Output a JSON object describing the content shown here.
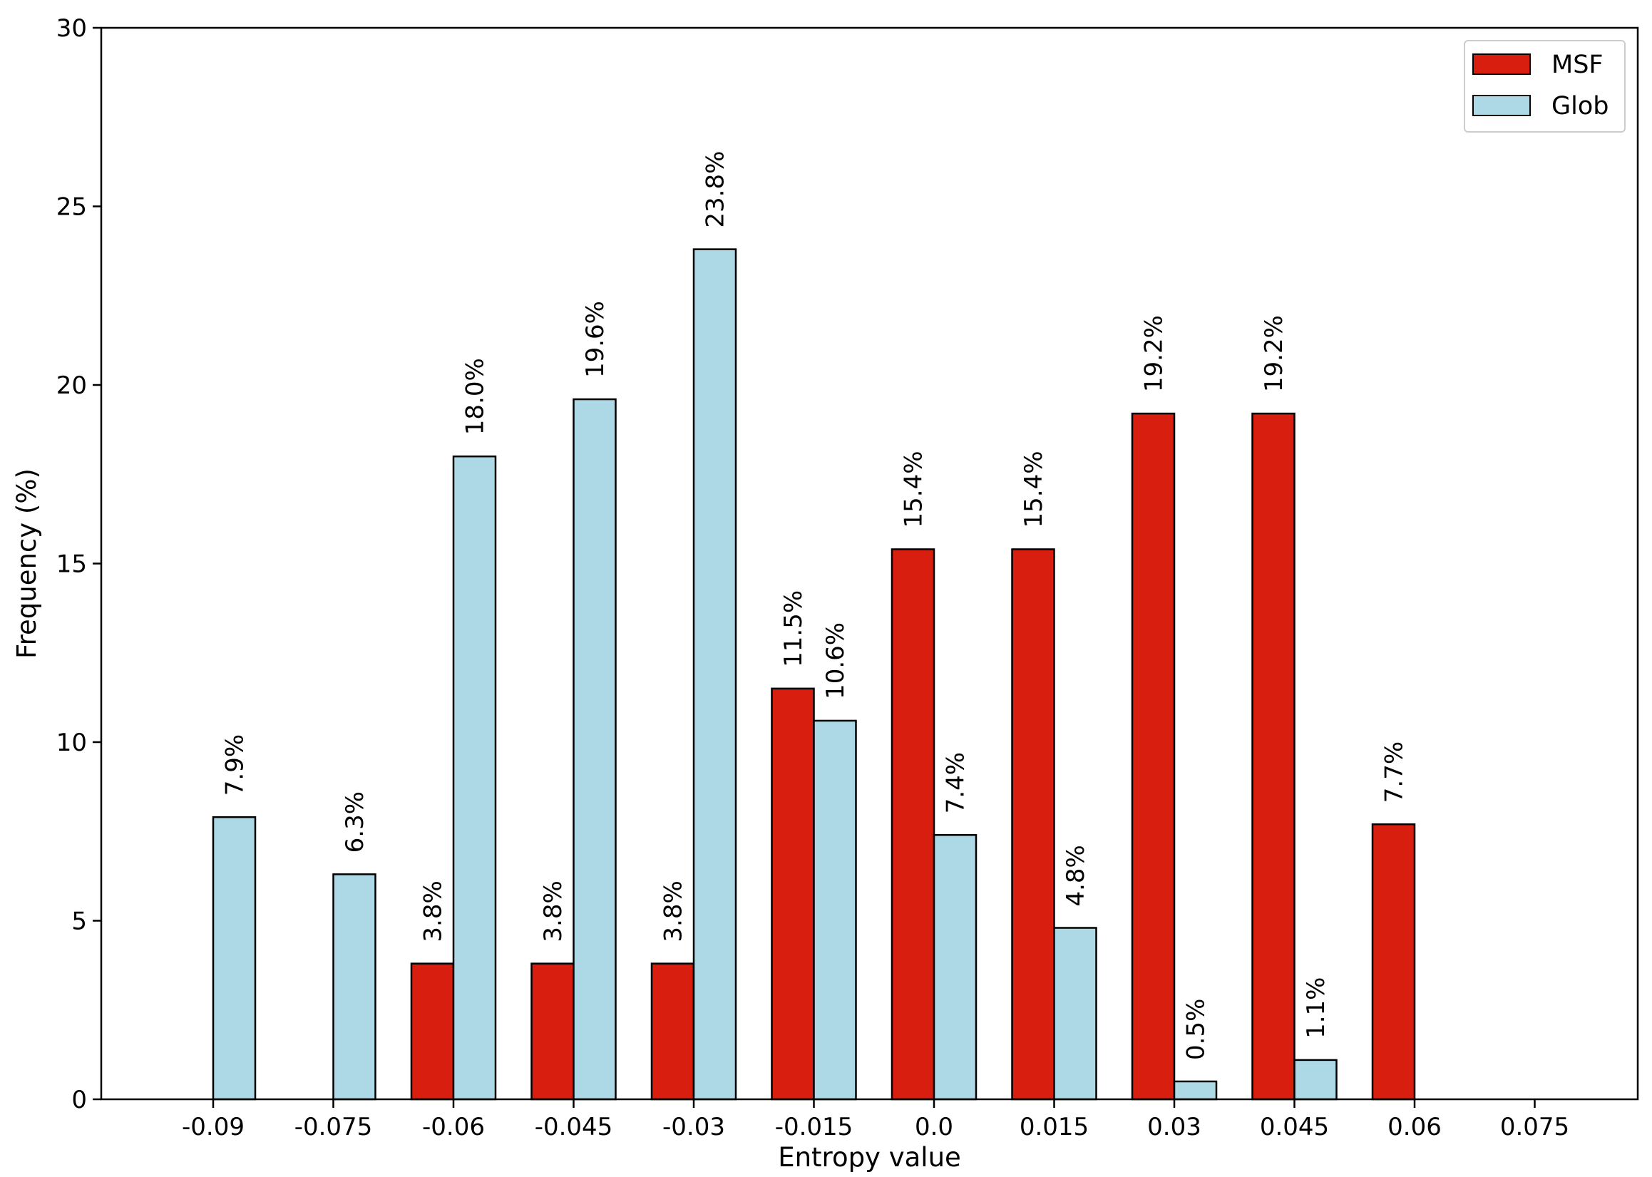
{
  "chart_data": {
    "type": "bar",
    "xlabel": "Entropy value",
    "ylabel": "Frequency (%)",
    "ylim": [
      0,
      30
    ],
    "yticks": [
      "0",
      "5",
      "10",
      "15",
      "20",
      "25",
      "30"
    ],
    "categories": [
      "-0.09",
      "-0.075",
      "-0.06",
      "-0.045",
      "-0.03",
      "-0.015",
      "0.0",
      "0.015",
      "0.03",
      "0.045",
      "0.06",
      "0.075"
    ],
    "series": [
      {
        "name": "MSF",
        "color": "#d81e0e",
        "values": [
          0,
          0,
          3.8,
          3.8,
          3.8,
          11.5,
          15.4,
          15.4,
          19.2,
          19.2,
          7.7,
          0
        ],
        "labels": [
          "",
          "",
          "3.8%",
          "3.8%",
          "3.8%",
          "11.5%",
          "15.4%",
          "15.4%",
          "19.2%",
          "19.2%",
          "7.7%",
          ""
        ]
      },
      {
        "name": "Glob",
        "color": "#add8e6",
        "values": [
          7.9,
          6.3,
          18.0,
          19.6,
          23.8,
          10.6,
          7.4,
          4.8,
          0.5,
          1.1,
          0,
          0
        ],
        "labels": [
          "7.9%",
          "6.3%",
          "18.0%",
          "19.6%",
          "23.8%",
          "10.6%",
          "7.4%",
          "4.8%",
          "0.5%",
          "1.1%",
          "",
          ""
        ]
      }
    ],
    "legend_position": "top-right",
    "grid": false
  }
}
